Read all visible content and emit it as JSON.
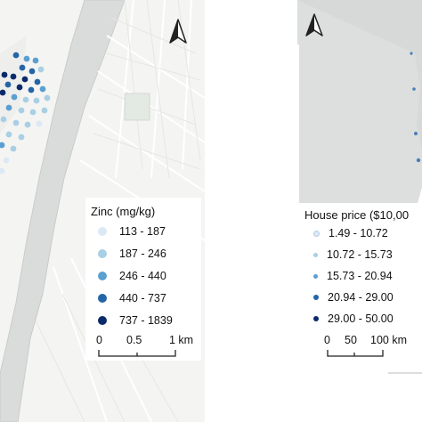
{
  "left_map": {
    "legend": {
      "title": "Zinc (mg/kg)",
      "items": [
        {
          "label": "113 - 187",
          "color": "#dbe9f6"
        },
        {
          "label": "187 - 246",
          "color": "#a9cfe5"
        },
        {
          "label": "246 - 440",
          "color": "#5b9fd0"
        },
        {
          "label": "440 - 737",
          "color": "#2465a8"
        },
        {
          "label": "737 - 1839",
          "color": "#0b2a6b"
        }
      ]
    },
    "scalebar": {
      "ticks": [
        "0",
        "0.5",
        "1 km"
      ]
    },
    "north_arrow": "north-arrow-icon"
  },
  "right_map": {
    "legend": {
      "title": "House price ($10,00",
      "items": [
        {
          "label": "1.49 - 10.72",
          "color": "#dbe9f6"
        },
        {
          "label": "10.72 - 15.73",
          "color": "#a9cfe5"
        },
        {
          "label": "15.73 - 20.94",
          "color": "#5b9fd0"
        },
        {
          "label": "20.94 - 29.00",
          "color": "#2465a8"
        },
        {
          "label": "29.00 - 50.00",
          "color": "#0b2a6b"
        }
      ]
    },
    "scalebar": {
      "ticks": [
        "0",
        "50",
        "100 km"
      ]
    },
    "north_arrow": "north-arrow-icon"
  }
}
